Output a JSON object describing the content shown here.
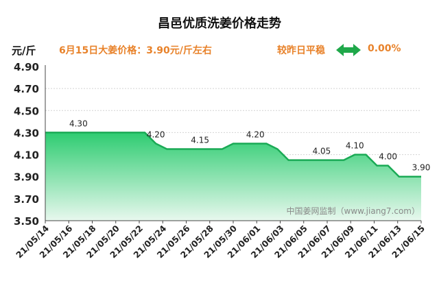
{
  "header": {
    "title": "昌邑优质洗姜价格走势",
    "unit": "元/斤",
    "price_note": "6月15日大姜价格：3.90元/斤左右",
    "compare_label": "较昨日平稳",
    "change_value": "0.00%",
    "compare_icon": "double-arrow-icon"
  },
  "colors": {
    "accent": "#e8822a",
    "area_fill_top": "#2ecc71",
    "area_fill_bottom": "#e8f8ee",
    "line": "#1aaa55",
    "arrow": "#1fa84a"
  },
  "chart_data": {
    "type": "area",
    "title": "",
    "xlabel": "",
    "ylabel": "元/斤",
    "ylim": [
      3.5,
      4.9
    ],
    "yticks": [
      "4.90",
      "4.70",
      "4.50",
      "4.30",
      "4.10",
      "3.90",
      "3.70",
      "3.50"
    ],
    "grid": true,
    "x_tick_labels": [
      "21/05/14",
      "21/05/16",
      "21/05/18",
      "21/05/20",
      "21/05/22",
      "21/05/24",
      "21/05/26",
      "21/05/28",
      "21/05/30",
      "21/06/01",
      "21/06/03",
      "21/06/05",
      "21/06/07",
      "21/06/09",
      "21/06/11",
      "21/06/13",
      "21/06/15"
    ],
    "series": [
      {
        "values": [
          4.3,
          4.3,
          4.3,
          4.3,
          4.3,
          4.3,
          4.3,
          4.3,
          4.3,
          4.3,
          4.2,
          4.15,
          4.15,
          4.15,
          4.15,
          4.15,
          4.15,
          4.2,
          4.2,
          4.2,
          4.2,
          4.15,
          4.05,
          4.05,
          4.05,
          4.05,
          4.05,
          4.05,
          4.1,
          4.1,
          4.0,
          4.0,
          3.9,
          3.9,
          3.9
        ]
      }
    ],
    "data_labels": [
      {
        "text": "4.30",
        "index": 3
      },
      {
        "text": "4.20",
        "index": 10
      },
      {
        "text": "4.15",
        "index": 14
      },
      {
        "text": "4.20",
        "index": 19
      },
      {
        "text": "4.05",
        "index": 25
      },
      {
        "text": "4.10",
        "index": 28
      },
      {
        "text": "4.00",
        "index": 31
      },
      {
        "text": "3.90",
        "index": 34
      }
    ],
    "watermark": "中国姜网监制（www.jiang7.com）"
  }
}
